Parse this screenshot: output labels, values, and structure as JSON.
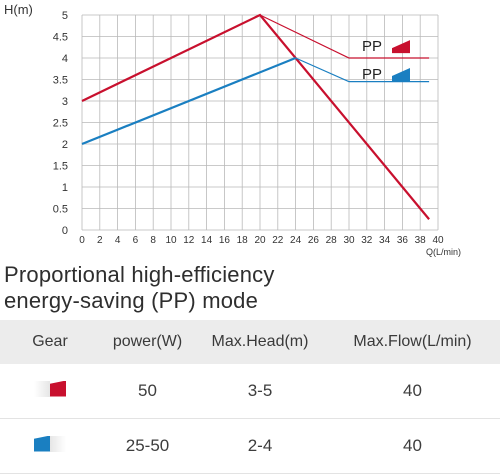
{
  "chart_data": {
    "type": "line",
    "ylabel": "H(m)",
    "xlabel": "Q(L/min)",
    "xlim": [
      0,
      40
    ],
    "ylim": [
      0,
      5
    ],
    "x_ticks": [
      "0",
      "2",
      "4",
      "6",
      "8",
      "10",
      "12",
      "14",
      "16",
      "18",
      "20",
      "22",
      "24",
      "26",
      "28",
      "30",
      "32",
      "34",
      "36",
      "38",
      "40"
    ],
    "y_ticks": [
      "0",
      "0.5",
      "1",
      "1.5",
      "2",
      "2.5",
      "3",
      "3.5",
      "4",
      "4.5",
      "5"
    ],
    "grid": true,
    "series": [
      {
        "name": "PP",
        "color": "#c8102e",
        "points": [
          [
            0,
            3
          ],
          [
            20,
            5
          ],
          [
            39,
            0.25
          ]
        ],
        "pp_points": [
          [
            20,
            5
          ],
          [
            30,
            4
          ],
          [
            39,
            4
          ]
        ]
      },
      {
        "name": "PP",
        "color": "#1a7fc1",
        "points": [
          [
            0,
            2
          ],
          [
            24,
            4
          ]
        ],
        "pp_points": [
          [
            24,
            4
          ],
          [
            30,
            3.45
          ],
          [
            39,
            3.45
          ]
        ]
      }
    ],
    "legend": "top-right"
  },
  "section_title": [
    "Proportional high-efficiency",
    "energy-saving (PP) mode"
  ],
  "table": {
    "headers": [
      "Gear",
      "power(W)",
      "Max.Head(m)",
      "Max.Flow(L/min)"
    ],
    "rows": [
      {
        "gear_icon": "red-gear-icon",
        "power": "50",
        "head": "3-5",
        "flow": "40"
      },
      {
        "gear_icon": "blue-gear-icon",
        "power": "25-50",
        "head": "2-4",
        "flow": "40"
      }
    ]
  },
  "colors": {
    "red": "#c8102e",
    "blue": "#1a7fc1",
    "grid": "#b9b9b9",
    "header_bg": "#ececec"
  }
}
